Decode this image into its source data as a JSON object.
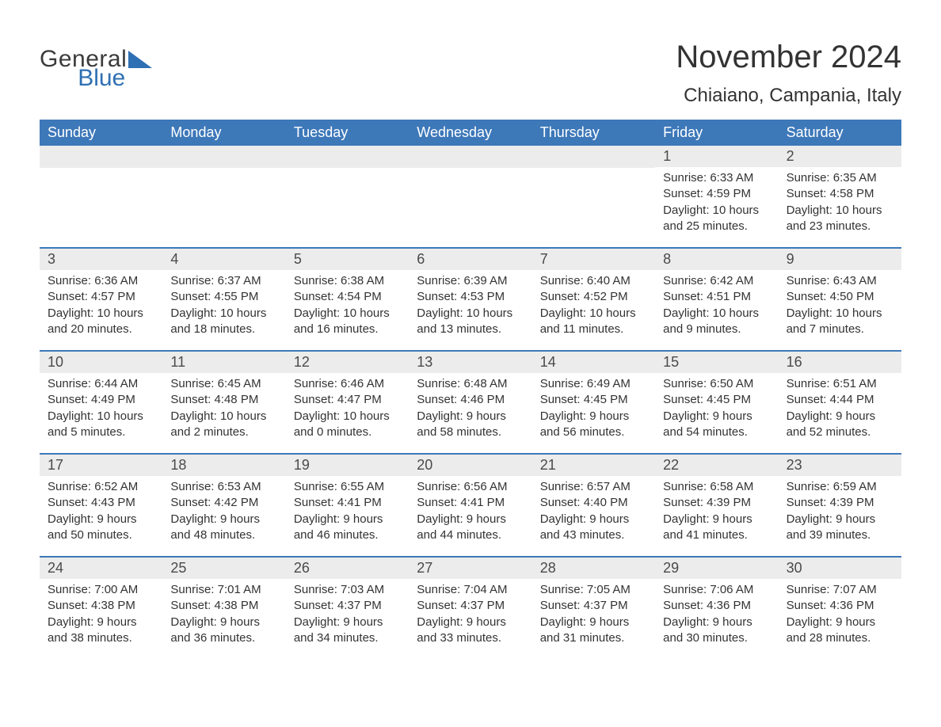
{
  "brand": {
    "word1": "General",
    "word2": "Blue",
    "accent_color": "#2f6fb3"
  },
  "title": "November 2024",
  "location": "Chiaiano, Campania, Italy",
  "colors": {
    "header_bg": "#3d78b9",
    "header_text": "#ffffff",
    "daynum_bg": "#ececec",
    "week_border": "#3d78b9",
    "body_text": "#333333",
    "background": "#ffffff"
  },
  "fonts": {
    "title_size_pt": 30,
    "location_size_pt": 18,
    "dow_size_pt": 14,
    "daynum_size_pt": 14,
    "body_size_pt": 11
  },
  "days_of_week": [
    "Sunday",
    "Monday",
    "Tuesday",
    "Wednesday",
    "Thursday",
    "Friday",
    "Saturday"
  ],
  "weeks": [
    [
      {
        "empty": true
      },
      {
        "empty": true
      },
      {
        "empty": true
      },
      {
        "empty": true
      },
      {
        "empty": true
      },
      {
        "day": "1",
        "sunrise": "Sunrise: 6:33 AM",
        "sunset": "Sunset: 4:59 PM",
        "daylight": "Daylight: 10 hours and 25 minutes."
      },
      {
        "day": "2",
        "sunrise": "Sunrise: 6:35 AM",
        "sunset": "Sunset: 4:58 PM",
        "daylight": "Daylight: 10 hours and 23 minutes."
      }
    ],
    [
      {
        "day": "3",
        "sunrise": "Sunrise: 6:36 AM",
        "sunset": "Sunset: 4:57 PM",
        "daylight": "Daylight: 10 hours and 20 minutes."
      },
      {
        "day": "4",
        "sunrise": "Sunrise: 6:37 AM",
        "sunset": "Sunset: 4:55 PM",
        "daylight": "Daylight: 10 hours and 18 minutes."
      },
      {
        "day": "5",
        "sunrise": "Sunrise: 6:38 AM",
        "sunset": "Sunset: 4:54 PM",
        "daylight": "Daylight: 10 hours and 16 minutes."
      },
      {
        "day": "6",
        "sunrise": "Sunrise: 6:39 AM",
        "sunset": "Sunset: 4:53 PM",
        "daylight": "Daylight: 10 hours and 13 minutes."
      },
      {
        "day": "7",
        "sunrise": "Sunrise: 6:40 AM",
        "sunset": "Sunset: 4:52 PM",
        "daylight": "Daylight: 10 hours and 11 minutes."
      },
      {
        "day": "8",
        "sunrise": "Sunrise: 6:42 AM",
        "sunset": "Sunset: 4:51 PM",
        "daylight": "Daylight: 10 hours and 9 minutes."
      },
      {
        "day": "9",
        "sunrise": "Sunrise: 6:43 AM",
        "sunset": "Sunset: 4:50 PM",
        "daylight": "Daylight: 10 hours and 7 minutes."
      }
    ],
    [
      {
        "day": "10",
        "sunrise": "Sunrise: 6:44 AM",
        "sunset": "Sunset: 4:49 PM",
        "daylight": "Daylight: 10 hours and 5 minutes."
      },
      {
        "day": "11",
        "sunrise": "Sunrise: 6:45 AM",
        "sunset": "Sunset: 4:48 PM",
        "daylight": "Daylight: 10 hours and 2 minutes."
      },
      {
        "day": "12",
        "sunrise": "Sunrise: 6:46 AM",
        "sunset": "Sunset: 4:47 PM",
        "daylight": "Daylight: 10 hours and 0 minutes."
      },
      {
        "day": "13",
        "sunrise": "Sunrise: 6:48 AM",
        "sunset": "Sunset: 4:46 PM",
        "daylight": "Daylight: 9 hours and 58 minutes."
      },
      {
        "day": "14",
        "sunrise": "Sunrise: 6:49 AM",
        "sunset": "Sunset: 4:45 PM",
        "daylight": "Daylight: 9 hours and 56 minutes."
      },
      {
        "day": "15",
        "sunrise": "Sunrise: 6:50 AM",
        "sunset": "Sunset: 4:45 PM",
        "daylight": "Daylight: 9 hours and 54 minutes."
      },
      {
        "day": "16",
        "sunrise": "Sunrise: 6:51 AM",
        "sunset": "Sunset: 4:44 PM",
        "daylight": "Daylight: 9 hours and 52 minutes."
      }
    ],
    [
      {
        "day": "17",
        "sunrise": "Sunrise: 6:52 AM",
        "sunset": "Sunset: 4:43 PM",
        "daylight": "Daylight: 9 hours and 50 minutes."
      },
      {
        "day": "18",
        "sunrise": "Sunrise: 6:53 AM",
        "sunset": "Sunset: 4:42 PM",
        "daylight": "Daylight: 9 hours and 48 minutes."
      },
      {
        "day": "19",
        "sunrise": "Sunrise: 6:55 AM",
        "sunset": "Sunset: 4:41 PM",
        "daylight": "Daylight: 9 hours and 46 minutes."
      },
      {
        "day": "20",
        "sunrise": "Sunrise: 6:56 AM",
        "sunset": "Sunset: 4:41 PM",
        "daylight": "Daylight: 9 hours and 44 minutes."
      },
      {
        "day": "21",
        "sunrise": "Sunrise: 6:57 AM",
        "sunset": "Sunset: 4:40 PM",
        "daylight": "Daylight: 9 hours and 43 minutes."
      },
      {
        "day": "22",
        "sunrise": "Sunrise: 6:58 AM",
        "sunset": "Sunset: 4:39 PM",
        "daylight": "Daylight: 9 hours and 41 minutes."
      },
      {
        "day": "23",
        "sunrise": "Sunrise: 6:59 AM",
        "sunset": "Sunset: 4:39 PM",
        "daylight": "Daylight: 9 hours and 39 minutes."
      }
    ],
    [
      {
        "day": "24",
        "sunrise": "Sunrise: 7:00 AM",
        "sunset": "Sunset: 4:38 PM",
        "daylight": "Daylight: 9 hours and 38 minutes."
      },
      {
        "day": "25",
        "sunrise": "Sunrise: 7:01 AM",
        "sunset": "Sunset: 4:38 PM",
        "daylight": "Daylight: 9 hours and 36 minutes."
      },
      {
        "day": "26",
        "sunrise": "Sunrise: 7:03 AM",
        "sunset": "Sunset: 4:37 PM",
        "daylight": "Daylight: 9 hours and 34 minutes."
      },
      {
        "day": "27",
        "sunrise": "Sunrise: 7:04 AM",
        "sunset": "Sunset: 4:37 PM",
        "daylight": "Daylight: 9 hours and 33 minutes."
      },
      {
        "day": "28",
        "sunrise": "Sunrise: 7:05 AM",
        "sunset": "Sunset: 4:37 PM",
        "daylight": "Daylight: 9 hours and 31 minutes."
      },
      {
        "day": "29",
        "sunrise": "Sunrise: 7:06 AM",
        "sunset": "Sunset: 4:36 PM",
        "daylight": "Daylight: 9 hours and 30 minutes."
      },
      {
        "day": "30",
        "sunrise": "Sunrise: 7:07 AM",
        "sunset": "Sunset: 4:36 PM",
        "daylight": "Daylight: 9 hours and 28 minutes."
      }
    ]
  ]
}
